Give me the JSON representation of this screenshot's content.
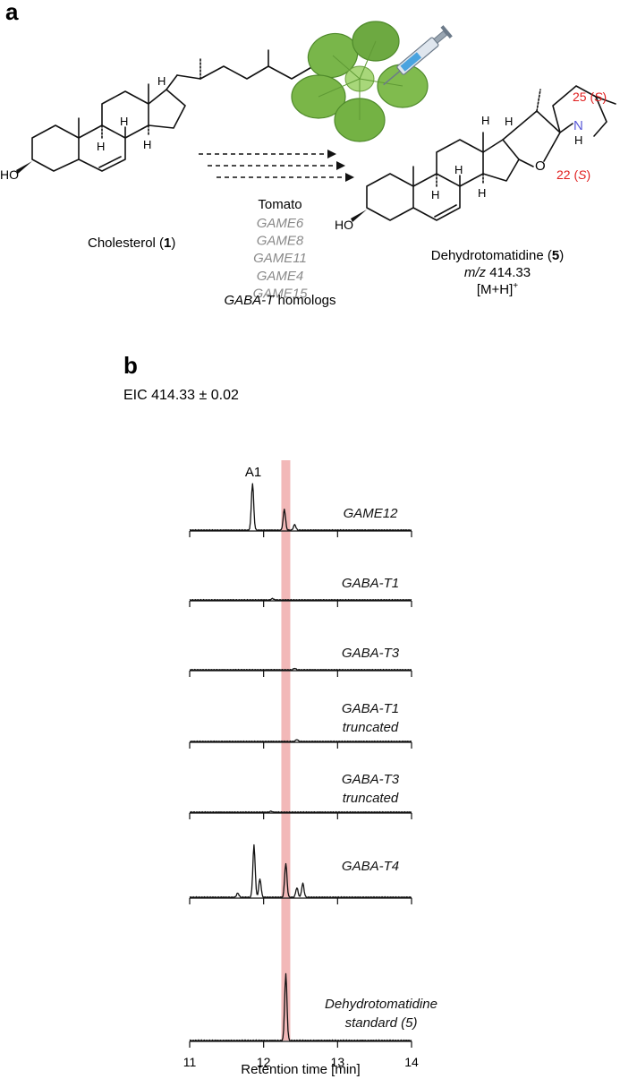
{
  "panel_a": {
    "letter": "a",
    "cholesterol": {
      "name_prefix": "Cholesterol (",
      "number": "1",
      "name_suffix": ")",
      "ho": "HO"
    },
    "dehydrotomatidine": {
      "name_prefix": "Dehydrotomatidine (",
      "number": "5",
      "name_suffix": ")",
      "mz_label": "m/z",
      "mz_value": " 414.33",
      "ion": "[M+H]",
      "ion_charge": "+",
      "ho": "HO",
      "n_atom": "N",
      "n_h": "H",
      "o_atom": "O",
      "stereo_22": "22 (",
      "stereo_25": "25 (",
      "stereo_s": "S",
      "stereo_close": ")"
    },
    "h_label": "H",
    "pathway": {
      "organism": "Tomato",
      "genes": [
        "GAME6",
        "GAME8",
        "GAME11",
        "GAME4",
        "GAME15"
      ],
      "homologs_italic": "GABA-T",
      "homologs_rest": " homologs"
    },
    "colors": {
      "stereo": "#e01e1e",
      "nitrogen": "#5a5ad8",
      "leaf": "#7ab648",
      "leaf_dark": "#4f8a2b"
    },
    "icons": [
      "nicotiana-plant-icon",
      "syringe-icon"
    ]
  },
  "panel_b": {
    "letter": "b",
    "subtitle": "EIC 414.33 ± 0.02",
    "peak_label": "A1",
    "highlight_color": "#f2b8b8"
  },
  "chart_data": {
    "type": "line",
    "xlabel": "Retention time [min]",
    "xlim": [
      11,
      14
    ],
    "xticks": [
      11,
      12,
      13,
      14
    ],
    "highlight_rt": 12.3,
    "series": [
      {
        "name": "GAME12",
        "name_line2": "",
        "rel_peaks": [
          [
            11.85,
            1.0
          ],
          [
            12.28,
            0.45
          ],
          [
            12.42,
            0.12
          ]
        ]
      },
      {
        "name": "GABA-T1",
        "name_line2": "",
        "rel_peaks": [
          [
            12.12,
            0.03
          ]
        ]
      },
      {
        "name": "GABA-T3",
        "name_line2": "",
        "rel_peaks": [
          [
            12.42,
            0.03
          ]
        ]
      },
      {
        "name": "GABA-T1",
        "name_line2": "truncated",
        "rel_peaks": [
          [
            12.45,
            0.04
          ]
        ]
      },
      {
        "name": "GABA-T3",
        "name_line2": "truncated",
        "rel_peaks": [
          [
            12.1,
            0.02
          ]
        ]
      },
      {
        "name": "GABA-T4",
        "name_line2": "",
        "rel_peaks": [
          [
            11.65,
            0.08
          ],
          [
            11.87,
            1.0
          ],
          [
            11.95,
            0.35
          ],
          [
            12.3,
            0.65
          ],
          [
            12.45,
            0.18
          ],
          [
            12.53,
            0.27
          ]
        ]
      },
      {
        "name": "Dehydrotomatidine",
        "name_line2": "standard (5)",
        "rel_peaks": [
          [
            12.3,
            1.0
          ]
        ]
      }
    ]
  }
}
